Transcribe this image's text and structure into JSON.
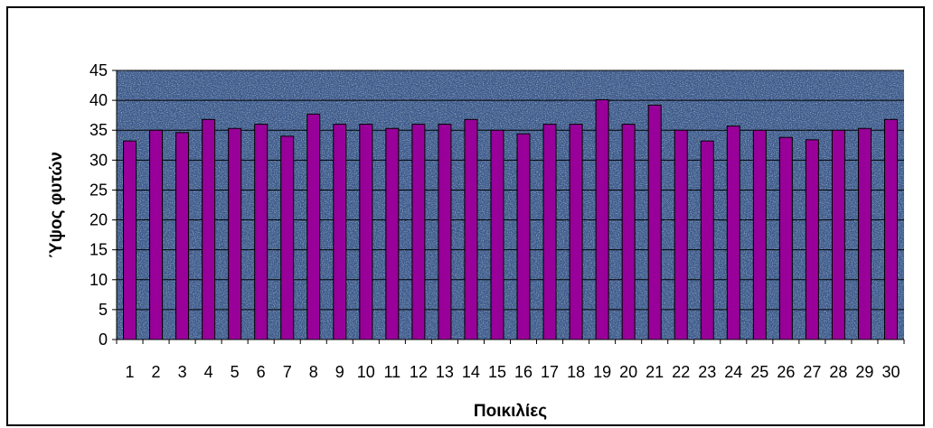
{
  "chart_data": {
    "type": "bar",
    "title": "",
    "xlabel": "Ποικιλίες",
    "ylabel": "Ύψος φυτών",
    "categories": [
      "1",
      "2",
      "3",
      "4",
      "5",
      "6",
      "7",
      "8",
      "9",
      "10",
      "11",
      "12",
      "13",
      "14",
      "15",
      "16",
      "17",
      "18",
      "19",
      "20",
      "21",
      "22",
      "23",
      "24",
      "25",
      "26",
      "27",
      "28",
      "29",
      "30"
    ],
    "values": [
      33.2,
      35,
      34.6,
      36.8,
      35.3,
      36,
      34,
      37.7,
      36,
      36,
      35.3,
      36,
      36,
      36.8,
      35,
      34.4,
      36,
      36,
      40.1,
      36,
      39.2,
      35,
      33.2,
      35.7,
      35,
      33.8,
      33.4,
      35,
      35.3,
      36.8
    ],
    "ylim": [
      0,
      45
    ],
    "yticks": [
      0,
      5,
      10,
      15,
      20,
      25,
      30,
      35,
      40,
      45
    ],
    "grid": "horizontal",
    "legend": "none",
    "colors": {
      "bar_fill": "#990099",
      "bar_stroke": "#000000",
      "plot_background": "#3c5a8a",
      "gridline": "#000000",
      "axis": "#000000"
    }
  }
}
